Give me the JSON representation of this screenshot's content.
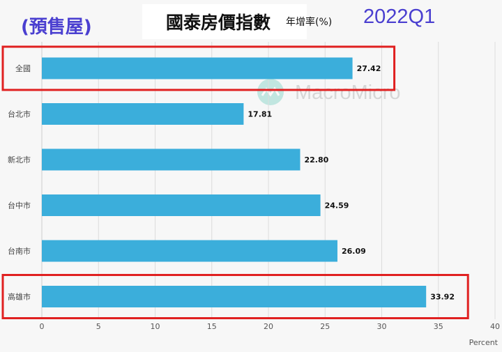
{
  "header": {
    "title": "國泰房價指數",
    "subtitle": "年增率(%)",
    "corner_left": "(預售屋)",
    "corner_right": "2022Q1"
  },
  "watermark": {
    "text": "MacroMicro"
  },
  "chart_data": {
    "type": "bar",
    "orientation": "horizontal",
    "title": "國泰房價指數",
    "subtitle": "年增率(%)",
    "xlabel": "Percent",
    "ylabel": "",
    "categories": [
      "全國",
      "台北市",
      "新北市",
      "台中市",
      "台南市",
      "高雄市"
    ],
    "values": [
      27.42,
      17.81,
      22.8,
      24.59,
      26.09,
      33.92
    ],
    "value_labels": [
      "27.42",
      "17.81",
      "22.80",
      "24.59",
      "26.09",
      "33.92"
    ],
    "xlim": [
      0,
      40
    ],
    "xticks": [
      0,
      5,
      10,
      15,
      20,
      25,
      30,
      35,
      40
    ],
    "grid": "vertical",
    "bar_color": "#3baedb",
    "highlight_color": "#e02020",
    "highlighted_categories": [
      "全國",
      "高雄市"
    ]
  }
}
